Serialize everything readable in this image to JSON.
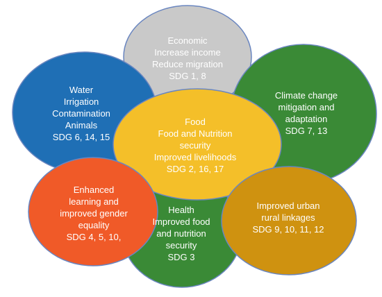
{
  "colors": {
    "economic": "#c9c9c9",
    "water": "#1f6fb5",
    "climate": "#3a8a36",
    "enhanced": "#f05a28",
    "health": "#3a8a36",
    "urban": "#cf9210",
    "food": "#f4bf29",
    "outline": "#6a86c0"
  },
  "circles": {
    "economic": {
      "lines": [
        "Economic",
        "Increase income",
        "Reduce migration",
        "SDG 1, 8"
      ]
    },
    "water": {
      "lines": [
        "Water",
        "Irrigation",
        "Contamination",
        "Animals",
        "SDG 6, 14, 15"
      ]
    },
    "climate": {
      "lines": [
        "Climate change",
        "mitigation and",
        "adaptation",
        "SDG 7, 13"
      ]
    },
    "food": {
      "lines": [
        "Food",
        "Food and Nutrition",
        "security",
        "Improved livelihoods",
        "SDG 2, 16, 17"
      ]
    },
    "enhanced": {
      "lines": [
        "Enhanced",
        "learning and",
        "improved gender",
        "equality",
        "SDG 4, 5, 10,"
      ]
    },
    "health": {
      "lines": [
        "Health",
        "Improved food",
        "and nutrition",
        "security",
        "SDG 3"
      ]
    },
    "urban": {
      "lines": [
        "Improved urban",
        "rural linkages",
        "SDG 9, 10, 11, 12"
      ]
    }
  }
}
